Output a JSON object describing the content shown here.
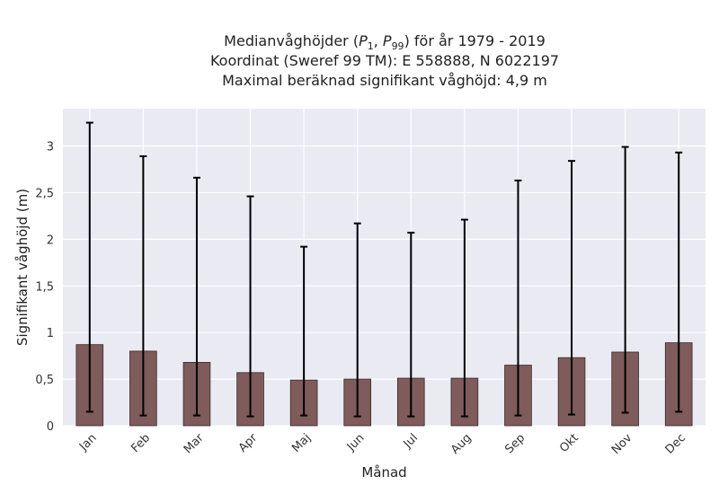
{
  "chart_data": {
    "type": "bar",
    "title_line1": "Medianvåghöjder (P1, P99) för år 1979 - 2019",
    "title_line2": "Koordinat (Sweref 99 TM): E 558888, N 6022197",
    "title_line3": "Maximal beräknad signifikant våghöjd: 4,9 m",
    "xlabel": "Månad",
    "ylabel": "Signifikant våghöjd (m)",
    "categories": [
      "Jan",
      "Feb",
      "Mar",
      "Apr",
      "Maj",
      "Jun",
      "Jul",
      "Aug",
      "Sep",
      "Okt",
      "Nov",
      "Dec"
    ],
    "values": [
      0.87,
      0.8,
      0.68,
      0.57,
      0.49,
      0.5,
      0.51,
      0.51,
      0.65,
      0.73,
      0.79,
      0.89
    ],
    "p1": [
      0.15,
      0.11,
      0.11,
      0.1,
      0.11,
      0.1,
      0.1,
      0.1,
      0.11,
      0.12,
      0.14,
      0.15
    ],
    "p99": [
      3.25,
      2.89,
      2.66,
      2.46,
      1.92,
      2.17,
      2.07,
      2.21,
      2.63,
      2.84,
      2.99,
      2.93
    ],
    "ylim": [
      0,
      3.4
    ],
    "yticks": [
      0,
      0.5,
      1,
      1.5,
      2,
      2.5,
      3
    ],
    "ytick_labels": [
      "0",
      "0,5",
      "1",
      "1,5",
      "2",
      "2,5",
      "3"
    ],
    "grid": true,
    "colors": {
      "bar": "#7f5b5b",
      "bar_edge": "#3a2a2a",
      "error": "#000000",
      "plot_bg": "#eaeaf2",
      "grid": "#ffffff"
    }
  }
}
